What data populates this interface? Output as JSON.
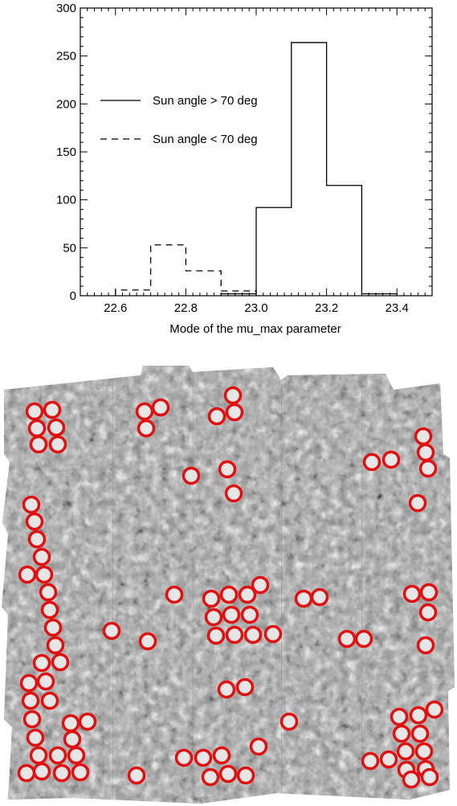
{
  "chart_data": [
    {
      "type": "histogram",
      "xlabel": "Mode of the mu_max parameter",
      "ylabel": "",
      "xlim": [
        22.5,
        23.5
      ],
      "ylim": [
        0,
        300
      ],
      "x_ticks": [
        "22.6",
        "22.8",
        "23.0",
        "23.2",
        "23.4"
      ],
      "y_ticks": [
        "0",
        "50",
        "100",
        "150",
        "200",
        "250",
        "300"
      ],
      "bin_width": 0.1,
      "legend_position": "upper-left",
      "series": [
        {
          "name": "Sun angle > 70 deg",
          "style": "solid",
          "bin_starts": [
            22.9,
            23.0,
            23.1,
            23.2,
            23.3
          ],
          "counts": [
            2,
            92,
            264,
            115,
            2
          ]
        },
        {
          "name": "Sun angle < 70 deg",
          "style": "dashed",
          "bin_starts": [
            22.6,
            22.7,
            22.8,
            22.9
          ],
          "counts": [
            6,
            53,
            26,
            5
          ]
        }
      ]
    },
    {
      "type": "image",
      "description_markers": "red circles",
      "marker_color": "#e01010"
    }
  ]
}
